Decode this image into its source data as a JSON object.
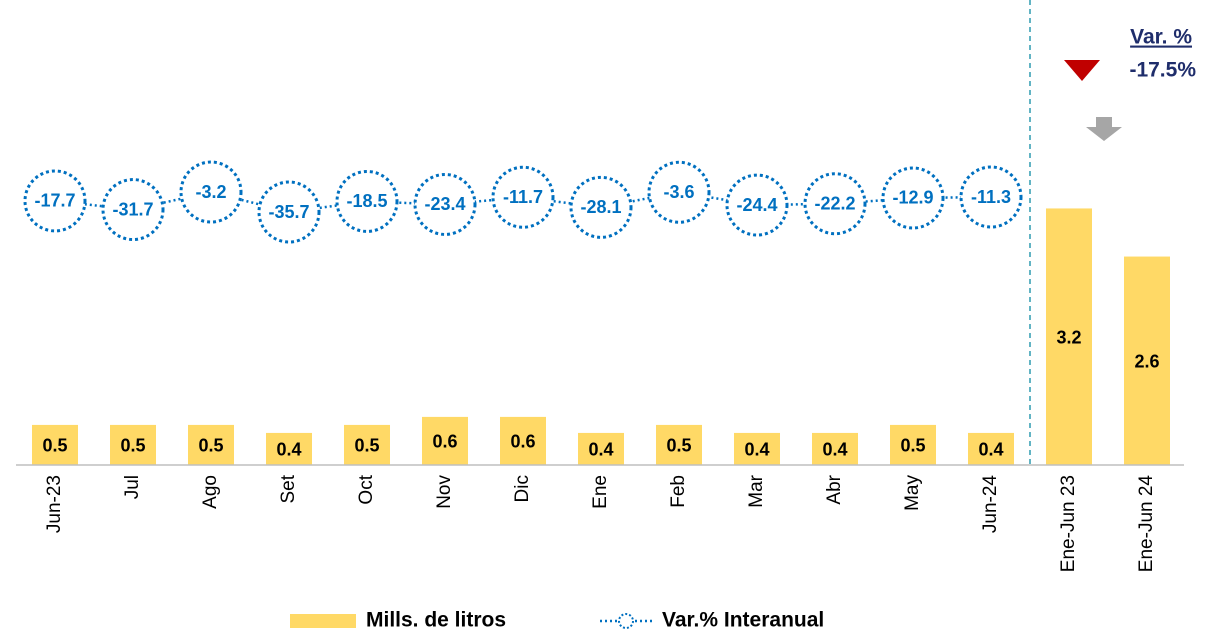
{
  "chart_data": {
    "type": "bar_line",
    "categories": [
      "Jun-23",
      "Jul",
      "Ago",
      "Set",
      "Oct",
      "Nov",
      "Dic",
      "Ene",
      "Feb",
      "Mar",
      "Abr",
      "May",
      "Jun-24",
      "Ene-Jun 23",
      "Ene-Jun 24"
    ],
    "series": [
      {
        "name": "Mills. de litros",
        "color": "#ffd966",
        "values": [
          0.5,
          0.5,
          0.5,
          0.4,
          0.5,
          0.6,
          0.6,
          0.4,
          0.5,
          0.4,
          0.4,
          0.5,
          0.4,
          3.2,
          2.6
        ]
      },
      {
        "name": "Var.% Interanual",
        "color": "#0070c0",
        "axis": "y2",
        "values": [
          -17.7,
          -31.7,
          -3.2,
          -35.7,
          -18.5,
          -23.4,
          -11.7,
          -28.1,
          -3.6,
          -24.4,
          -22.2,
          -12.9,
          -11.3,
          null,
          null
        ]
      }
    ],
    "ylim": [
      0,
      5.8
    ],
    "y2lim": [
      -447,
      309
    ],
    "annotation": {
      "title": "Var. %",
      "value": "-17.5%"
    }
  }
}
